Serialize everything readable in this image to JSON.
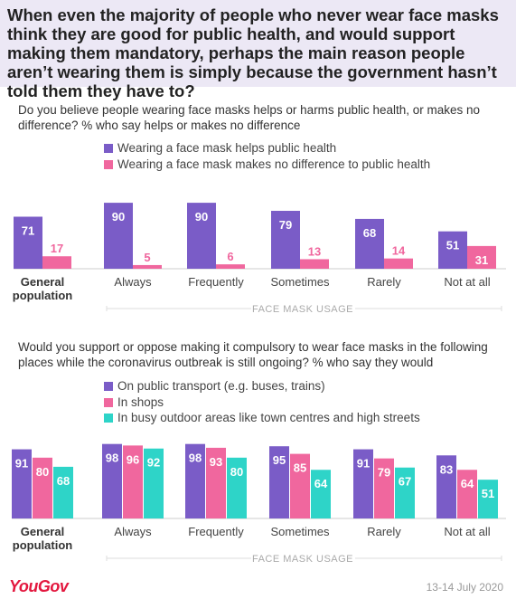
{
  "headline": "When even the majority of people who never wear face masks think they are good for public health, and would support making them mandatory, perhaps the main reason people aren’t wearing them is simply because the government hasn’t told them they have to?",
  "footer": {
    "brand": "YouGov",
    "date": "13-14 July 2020"
  },
  "colors": {
    "purple": "#7a5cc7",
    "pink": "#f0679e",
    "teal": "#2ed4c8"
  },
  "chart_data": [
    {
      "type": "bar",
      "title": "Do you believe people wearing face masks helps or harms public health, or makes no difference? % who say helps or makes no difference",
      "categories": [
        "General population",
        "Always",
        "Frequently",
        "Sometimes",
        "Rarely",
        "Not at all"
      ],
      "xlabel": "FACE MASK USAGE",
      "ylim": [
        0,
        100
      ],
      "series": [
        {
          "name": "Wearing a face mask helps public health",
          "color": "#7a5cc7",
          "values": [
            71,
            90,
            90,
            79,
            68,
            51
          ]
        },
        {
          "name": "Wearing a face mask makes no difference to public health",
          "color": "#f0679e",
          "values": [
            17,
            5,
            6,
            13,
            14,
            31
          ]
        }
      ]
    },
    {
      "type": "bar",
      "title": "Would you support or oppose making it compulsory to wear face masks in the following places while the coronavirus outbreak is still ongoing? % who say they would",
      "categories": [
        "General population",
        "Always",
        "Frequently",
        "Sometimes",
        "Rarely",
        "Not at all"
      ],
      "xlabel": "FACE MASK USAGE",
      "ylim": [
        0,
        100
      ],
      "series": [
        {
          "name": "On public transport (e.g. buses, trains)",
          "color": "#7a5cc7",
          "values": [
            91,
            98,
            98,
            95,
            91,
            83
          ]
        },
        {
          "name": "In shops",
          "color": "#f0679e",
          "values": [
            80,
            96,
            93,
            85,
            79,
            64
          ]
        },
        {
          "name": "In busy outdoor areas like town centres and high streets",
          "color": "#2ed4c8",
          "values": [
            68,
            92,
            80,
            64,
            67,
            51
          ]
        }
      ]
    }
  ]
}
